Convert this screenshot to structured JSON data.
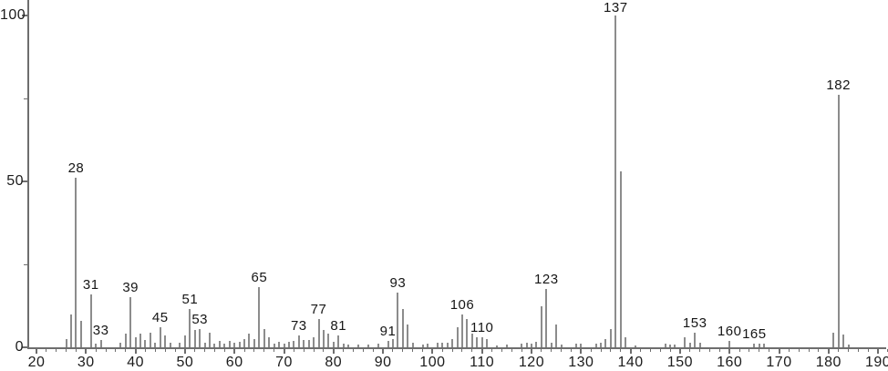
{
  "chart_data": {
    "type": "bar",
    "subtype": "mass-spectrum",
    "title": "",
    "xlabel": "",
    "ylabel": "",
    "xlim": [
      20,
      190
    ],
    "ylim": [
      0,
      100
    ],
    "grid": false,
    "legend": false,
    "x_major_ticks": [
      20,
      30,
      40,
      50,
      60,
      70,
      80,
      90,
      100,
      110,
      120,
      130,
      140,
      150,
      160,
      170,
      180,
      190
    ],
    "x_minor_tick_step": 2,
    "y_major_ticks": [
      0,
      50,
      100
    ],
    "y_minor_ticks": [
      25,
      75
    ],
    "bar_color": "#8c8c8c",
    "axis_color": "#6e6e6e",
    "text_color": "#1c1c1c",
    "peak_labels": [
      28,
      31,
      33,
      39,
      45,
      51,
      53,
      65,
      73,
      77,
      81,
      91,
      93,
      106,
      110,
      123,
      137,
      153,
      160,
      165,
      182
    ],
    "peaks": [
      [
        26,
        2.5
      ],
      [
        27,
        10
      ],
      [
        28,
        51
      ],
      [
        29,
        8
      ],
      [
        31,
        16
      ],
      [
        32,
        1.2
      ],
      [
        33,
        2.2
      ],
      [
        37,
        1.5
      ],
      [
        38,
        4
      ],
      [
        39,
        15
      ],
      [
        40,
        3
      ],
      [
        41,
        4
      ],
      [
        42,
        2.2
      ],
      [
        43,
        4.5
      ],
      [
        44,
        1.5
      ],
      [
        45,
        6
      ],
      [
        46,
        3.5
      ],
      [
        47,
        1.5
      ],
      [
        49,
        1.3
      ],
      [
        50,
        3.5
      ],
      [
        51,
        11.5
      ],
      [
        52,
        5.2
      ],
      [
        53,
        5.5
      ],
      [
        54,
        1.3
      ],
      [
        55,
        4.5
      ],
      [
        56,
        1
      ],
      [
        57,
        2
      ],
      [
        58,
        1
      ],
      [
        59,
        2
      ],
      [
        60,
        1.3
      ],
      [
        61,
        1.6
      ],
      [
        62,
        2.4
      ],
      [
        63,
        4
      ],
      [
        64,
        2.4
      ],
      [
        65,
        18
      ],
      [
        66,
        5.5
      ],
      [
        67,
        3
      ],
      [
        68,
        1
      ],
      [
        69,
        1.6
      ],
      [
        70,
        1
      ],
      [
        71,
        1.6
      ],
      [
        72,
        1.8
      ],
      [
        73,
        3.5
      ],
      [
        74,
        2.1
      ],
      [
        75,
        2.2
      ],
      [
        76,
        3
      ],
      [
        77,
        8.5
      ],
      [
        78,
        5.3
      ],
      [
        79,
        4
      ],
      [
        80,
        1.6
      ],
      [
        81,
        3.7
      ],
      [
        82,
        1.2
      ],
      [
        83,
        0.8
      ],
      [
        85,
        0.8
      ],
      [
        87,
        0.8
      ],
      [
        89,
        1
      ],
      [
        91,
        1.8
      ],
      [
        92,
        2.6
      ],
      [
        93,
        16.5
      ],
      [
        94,
        11.5
      ],
      [
        95,
        7
      ],
      [
        96,
        1.3
      ],
      [
        98,
        0.8
      ],
      [
        99,
        1
      ],
      [
        101,
        1.4
      ],
      [
        102,
        1.5
      ],
      [
        103,
        1.5
      ],
      [
        104,
        2.5
      ],
      [
        105,
        6
      ],
      [
        106,
        10
      ],
      [
        107,
        8.5
      ],
      [
        108,
        4
      ],
      [
        109,
        3.1
      ],
      [
        110,
        3
      ],
      [
        111,
        2.5
      ],
      [
        113,
        0.6
      ],
      [
        115,
        0.8
      ],
      [
        118,
        1
      ],
      [
        119,
        1.4
      ],
      [
        120,
        1
      ],
      [
        121,
        1.6
      ],
      [
        122,
        12.5
      ],
      [
        123,
        17.5
      ],
      [
        124,
        1.5
      ],
      [
        125,
        7
      ],
      [
        126,
        0.7
      ],
      [
        129,
        1
      ],
      [
        130,
        1.1
      ],
      [
        133,
        1.2
      ],
      [
        134,
        1.5
      ],
      [
        135,
        2.5
      ],
      [
        136,
        5.5
      ],
      [
        137,
        100
      ],
      [
        138,
        53
      ],
      [
        139,
        3
      ],
      [
        141,
        0.6
      ],
      [
        147,
        1
      ],
      [
        148,
        0.9
      ],
      [
        149,
        0.8
      ],
      [
        151,
        3
      ],
      [
        152,
        1.3
      ],
      [
        153,
        4.3
      ],
      [
        154,
        1.3
      ],
      [
        160,
        1.8
      ],
      [
        165,
        1.1
      ],
      [
        166,
        1
      ],
      [
        167,
        1.1
      ],
      [
        181,
        4.3
      ],
      [
        182,
        76
      ],
      [
        183,
        3.8
      ],
      [
        184,
        0.9
      ]
    ]
  }
}
